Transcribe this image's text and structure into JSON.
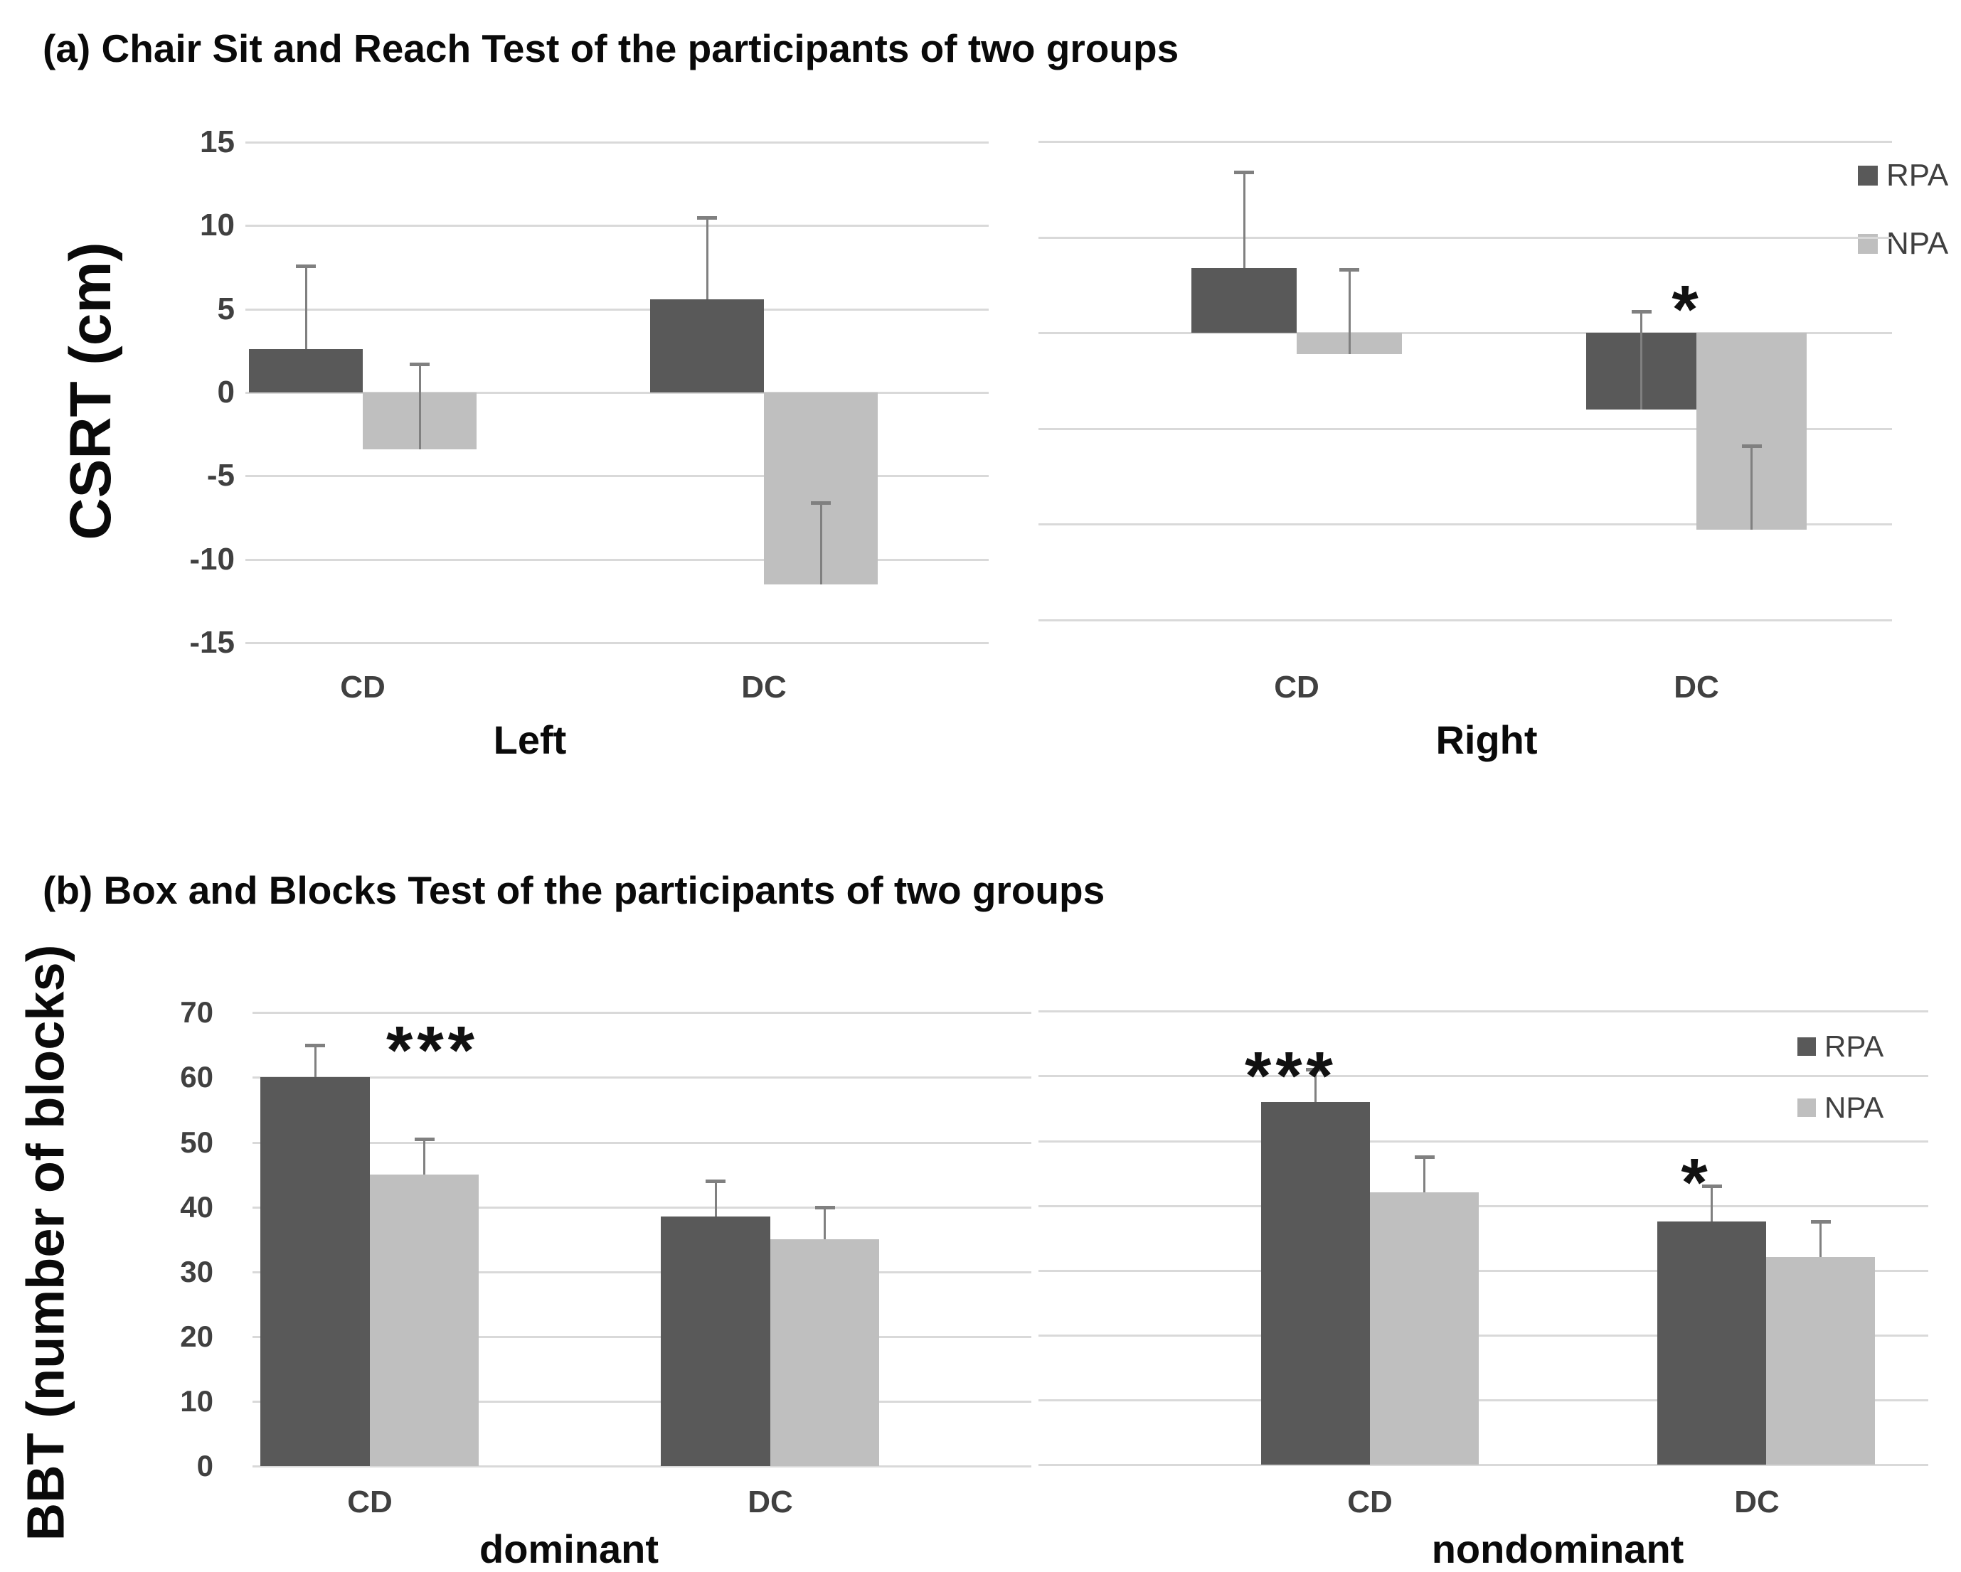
{
  "colors": {
    "rpa": "#595959",
    "npa": "#bfbfbf",
    "gridline": "#d9d9d9",
    "error_bar": "#808080",
    "tick_text": "#404040",
    "title_text": "#0a0a0a"
  },
  "panel_a": {
    "title": "(a) Chair Sit and Reach Test of the participants of two groups"
  },
  "panel_b": {
    "title": "(b) Box and Blocks Test of the participants of two groups"
  },
  "legend": {
    "items": [
      {
        "label": "RPA",
        "color": "#595959"
      },
      {
        "label": "NPA",
        "color": "#bfbfbf"
      }
    ]
  },
  "chart_data": [
    {
      "id": "csrt_left",
      "type": "bar",
      "panel": "a",
      "ylabel": "CSRT (cm)",
      "xlabel": "Left",
      "categories": [
        "CD",
        "DC"
      ],
      "series": [
        {
          "name": "RPA",
          "values": [
            2.6,
            5.6
          ],
          "error_caps": [
            7.6,
            10.5
          ]
        },
        {
          "name": "NPA",
          "values": [
            -3.4,
            -11.5
          ],
          "error_caps": [
            1.7,
            -6.6
          ]
        }
      ],
      "yticks": [
        15,
        10,
        5,
        0,
        -5,
        -10,
        -15
      ],
      "ytick_labels_visible": true,
      "ylim": [
        -15,
        15
      ],
      "grid": true,
      "legend_position": "none",
      "annotations": []
    },
    {
      "id": "csrt_right",
      "type": "bar",
      "panel": "a",
      "ylabel": "",
      "xlabel": "Right",
      "categories": [
        "CD",
        "DC"
      ],
      "series": [
        {
          "name": "RPA",
          "values": [
            3.4,
            -4.0
          ],
          "error_caps": [
            8.4,
            1.1
          ]
        },
        {
          "name": "NPA",
          "values": [
            -1.1,
            -10.3
          ],
          "error_caps": [
            3.3,
            -5.9
          ]
        }
      ],
      "yticks": [
        10,
        5,
        0,
        -5,
        -10,
        -15
      ],
      "ytick_labels_visible": false,
      "ylim": [
        -15,
        10
      ],
      "grid": true,
      "legend_position": "top-right",
      "annotations": [
        {
          "text": "*",
          "category": "DC"
        }
      ]
    },
    {
      "id": "bbt_dominant",
      "type": "bar",
      "panel": "b",
      "ylabel": "BBT (number of blocks)",
      "xlabel": "dominant",
      "categories": [
        "CD",
        "DC"
      ],
      "series": [
        {
          "name": "RPA",
          "values": [
            60,
            38.5
          ],
          "error_caps": [
            65,
            44
          ]
        },
        {
          "name": "NPA",
          "values": [
            45,
            35
          ],
          "error_caps": [
            50.5,
            40
          ]
        }
      ],
      "yticks": [
        70,
        60,
        50,
        40,
        30,
        20,
        10,
        0
      ],
      "ytick_labels_visible": true,
      "ylim": [
        0,
        70
      ],
      "grid": true,
      "legend_position": "none",
      "annotations": [
        {
          "text": "***",
          "category": "CD"
        }
      ]
    },
    {
      "id": "bbt_nondominant",
      "type": "bar",
      "panel": "b",
      "ylabel": "",
      "xlabel": "nondominant",
      "categories": [
        "CD",
        "DC"
      ],
      "series": [
        {
          "name": "RPA",
          "values": [
            56,
            37.5
          ],
          "error_caps": [
            61,
            43
          ]
        },
        {
          "name": "NPA",
          "values": [
            42,
            32
          ],
          "error_caps": [
            47.5,
            37.5
          ]
        }
      ],
      "yticks": [
        70,
        60,
        50,
        40,
        30,
        20,
        10,
        0
      ],
      "ytick_labels_visible": false,
      "ylim": [
        0,
        70
      ],
      "grid": true,
      "legend_position": "top-right",
      "annotations": [
        {
          "text": "***",
          "category": "CD"
        },
        {
          "text": "*",
          "category": "DC"
        }
      ]
    }
  ]
}
